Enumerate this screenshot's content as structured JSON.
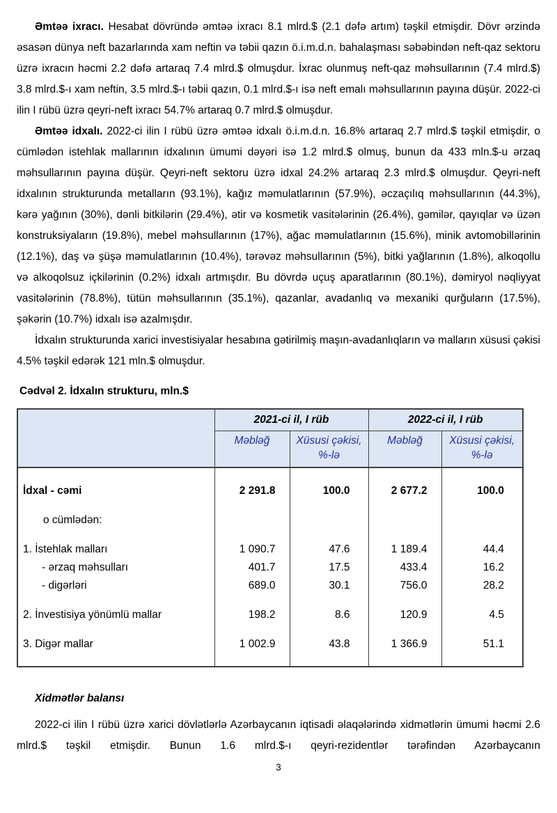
{
  "content": {
    "p1_lead": "Əmtəə ixracı.",
    "p1_text": "Hesabat dövründə əmtəə ixracı 8.1 mlrd.$ (2.1 dəfə artım) təşkil etmişdir. Dövr ərzində əsasən dünya neft bazarlarında xam neftin və təbii qazın ö.i.m.d.n. bahalaşması səbəbindən neft-qaz sektoru üzrə ixracın həcmi 2.2 dəfə artaraq 7.4 mlrd.$ olmuşdur. İxrac olunmuş neft-qaz məhsullarının (7.4 mlrd.$) 3.8 mlrd.$-ı xam neftin, 3.5 mlrd.$-ı təbii qazın, 0.1 mlrd.$-ı isə neft emalı məhsullarının payına düşür. 2022-ci ilin I rübü üzrə qeyri-neft ixracı 54.7% artaraq 0.7 mlrd.$ olmuşdur.",
    "p2_lead": "Əmtəə idxalı.",
    "p2_text": "2022-ci ilin I rübü üzrə əmtəə idxalı ö.i.m.d.n. 16.8% artaraq 2.7 mlrd.$ təşkil etmişdir, o cümlədən istehlak mallarının idxalının ümumi dəyəri isə 1.2 mlrd.$ olmuş, bunun da 433 mln.$-u ərzaq məhsullarının payına düşür. Qeyri-neft sektoru üzrə idxal 24.2% artaraq 2.3 mlrd.$ olmuşdur. Qeyri-neft idxalının strukturunda metalların (93.1%), kağız məmulatlarının (57.9%), əczaçılıq məhsullarının (44.3%), kərə yağının (30%), dənli bitkilərin (29.4%), ətir və kosmetik vasitələrinin (26.4%), gəmilər, qayıqlar və üzən konstruksiyaların (19.8%), mebel məhsullarının (17%), ağac məmulatlarının (15.6%), minik avtomobillərinin (12.1%), daş və şüşə məmulatlarının (10.4%), tərəvəz məhsullarının (5%), bitki yağlarının (1.8%), alkoqollu və alkoqolsuz içkilərinin (0.2%) idxalı artmışdır. Bu dövrdə uçuş aparatlarının (80.1%), dəmiryol nəqliyyat vasitələrinin (78.8%), tütün məhsullarının (35.1%), qazanlar, avadanlıq və mexaniki qurğuların (17.5%), şəkərin (10.7%) idxalı isə azalmışdır.",
    "p3": "İdxalın strukturunda xarici investisiyalar hesabına gətirilmiş maşın-avadanlıqların və malların xüsusi çəkisi 4.5% təşkil edərək 121 mln.$ olmuşdur.",
    "services_heading": "Xidmətlər balansı",
    "p4": "2022-ci ilin I rübü üzrə xarici dövlətlərlə Azərbaycanın iqtisadi əlaqələrində xidmətlərin ümumi həcmi 2.6 mlrd.$ təşkil etmişdir. Bunun 1.6 mlrd.$-ı qeyri-rezidentlər tərəfindən Azərbaycanın",
    "page_number": "3"
  },
  "table": {
    "caption": "Cədvəl 2. İdxalın strukturu, mln.$",
    "col_groups": [
      "2021-ci il, I rüb",
      "2022-ci il, I rüb"
    ],
    "sub_headers": [
      "Məbləğ",
      "Xüsusi çəkisi, %-lə",
      "Məbləğ",
      "Xüsusi çəkisi, %-lə"
    ],
    "rows": [
      {
        "label": "İdxal - cəmi",
        "values": [
          "2 291.8",
          "100.0",
          "2 677.2",
          "100.0"
        ]
      },
      {
        "label": "o cümlədən:",
        "values": [
          "",
          "",
          "",
          ""
        ]
      },
      {
        "label": "1. İstehlak malları",
        "values": [
          "1 090.7",
          "47.6",
          "1 189.4",
          "44.4"
        ]
      },
      {
        "label": "- ərzaq məhsulları",
        "values": [
          "401.7",
          "17.5",
          "433.4",
          "16.2"
        ]
      },
      {
        "label": "- digərləri",
        "values": [
          "689.0",
          "30.1",
          "756.0",
          "28.2"
        ]
      },
      {
        "label": "2. İnvestisiya yönümlü mallar",
        "values": [
          "198.2",
          "8.6",
          "120.9",
          "4.5"
        ]
      },
      {
        "label": "3. Digər mallar",
        "values": [
          "1 002.9",
          "43.8",
          "1 366.9",
          "51.1"
        ]
      }
    ],
    "colors": {
      "header_bg": "#dce6f4",
      "header_blue_text": "#232e9d",
      "border": "#404040"
    }
  }
}
